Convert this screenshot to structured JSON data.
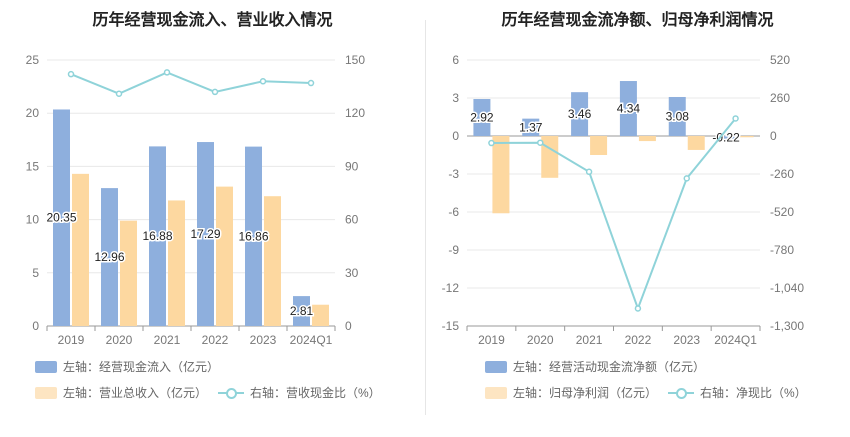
{
  "chart_data": [
    {
      "type": "bar",
      "title": "历年经营现金流入、营业收入情况",
      "categories": [
        "2019",
        "2020",
        "2021",
        "2022",
        "2023",
        "2024Q1"
      ],
      "left_axis": {
        "ylim": [
          0,
          25
        ],
        "ticks": [
          "0",
          "5",
          "10",
          "15",
          "20",
          "25"
        ]
      },
      "right_axis": {
        "ylim": [
          0,
          150
        ],
        "ticks": [
          "0",
          "30",
          "60",
          "90",
          "120",
          "150"
        ]
      },
      "series": [
        {
          "name": "左轴：经营现金流入（亿元）",
          "kind": "bar",
          "axis": "left",
          "color": "#8eafdd",
          "values": [
            20.35,
            12.96,
            16.88,
            17.29,
            16.86,
            2.81
          ],
          "labels": [
            "20.35",
            "12.96",
            "16.88",
            "17.29",
            "16.86",
            "2.81"
          ]
        },
        {
          "name": "左轴：营业总收入（亿元）",
          "kind": "bar",
          "axis": "left",
          "color": "#fdd8a0",
          "values": [
            14.3,
            9.9,
            11.8,
            13.1,
            12.2,
            2.0
          ]
        },
        {
          "name": "右轴：营收现金比（%）",
          "kind": "line",
          "axis": "right",
          "color": "#8fd3d9",
          "values": [
            142,
            131,
            143,
            132,
            138,
            137
          ]
        }
      ]
    },
    {
      "type": "bar",
      "title": "历年经营现金流净额、归母净利润情况",
      "categories": [
        "2019",
        "2020",
        "2021",
        "2022",
        "2023",
        "2024Q1"
      ],
      "left_axis": {
        "ylim": [
          -15,
          6
        ],
        "ticks": [
          "-15",
          "-12",
          "-9",
          "-6",
          "-3",
          "0",
          "3",
          "6"
        ]
      },
      "right_axis": {
        "ylim": [
          -1300,
          520
        ],
        "ticks": [
          "-1,300",
          "-1,040",
          "-780",
          "-520",
          "-260",
          "0",
          "260",
          "520"
        ]
      },
      "series": [
        {
          "name": "左轴：经营活动现金流净额（亿元）",
          "kind": "bar",
          "axis": "left",
          "color": "#8eafdd",
          "values": [
            2.92,
            1.37,
            3.46,
            4.34,
            3.08,
            -0.22
          ],
          "labels": [
            "2.92",
            "1.37",
            "3.46",
            "4.34",
            "3.08",
            "-0.22"
          ]
        },
        {
          "name": "左轴：归母净利润（亿元）",
          "kind": "bar",
          "axis": "left",
          "color": "#fdd8a0",
          "values": [
            -6.1,
            -3.3,
            -1.5,
            -0.4,
            -1.1,
            -0.1
          ]
        },
        {
          "name": "右轴：净现比（%）",
          "kind": "line",
          "axis": "right",
          "color": "#8fd3d9",
          "values": [
            -48,
            -46,
            -245,
            -1180,
            -290,
            120
          ]
        }
      ]
    }
  ]
}
